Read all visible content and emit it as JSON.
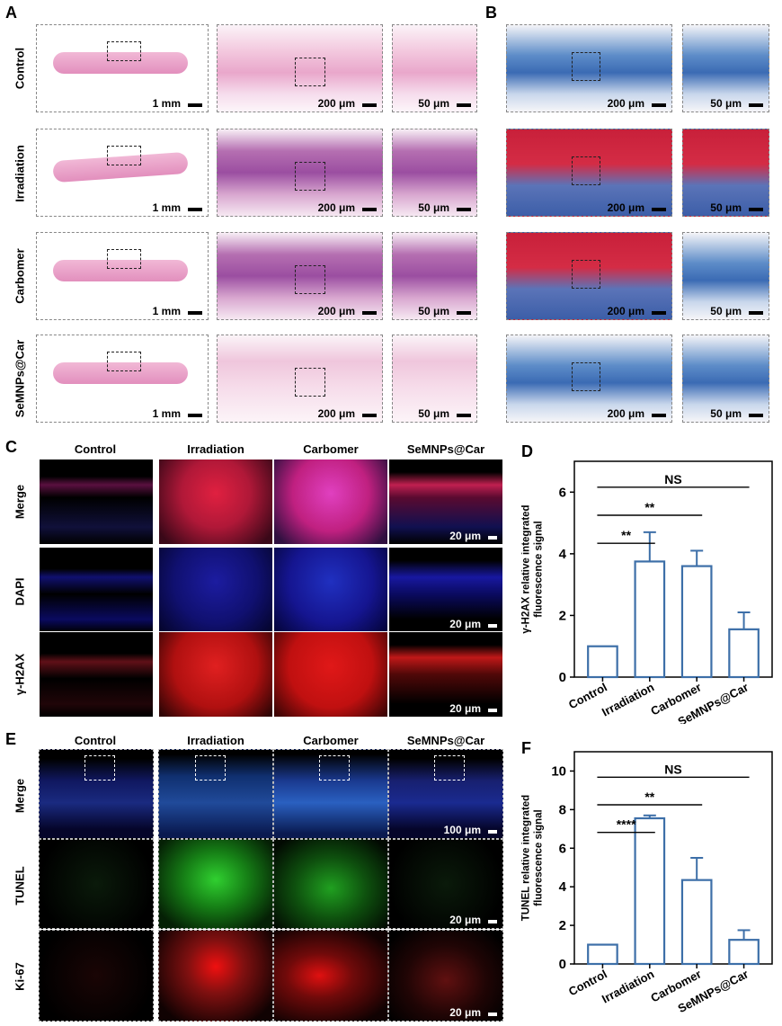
{
  "panels": {
    "a": "A",
    "b": "B",
    "c": "C",
    "d": "D",
    "e": "E",
    "f": "F"
  },
  "ab_rows": [
    "Control",
    "Irradiation",
    "Carbomer",
    "SeMNPs@Car"
  ],
  "scale": {
    "mm1": "1 mm",
    "um200": "200 μm",
    "um50": "50 μm",
    "um20": "20 μm",
    "um100": "100 μm"
  },
  "c_cols": [
    "Control",
    "Irradiation",
    "Carbomer",
    "SeMNPs@Car"
  ],
  "c_rows": [
    "Merge",
    "DAPI",
    "γ-H2AX"
  ],
  "e_cols": [
    "Control",
    "Irradiation",
    "Carbomer",
    "SeMNPs@Car"
  ],
  "e_rows": [
    "Merge",
    "TUNEL",
    "Ki-67"
  ],
  "colors": {
    "bar": "#3d6fa8",
    "merge_red": "#d8263a",
    "dapi_blue": "#2030d8",
    "tunel_green": "#2ecc2e"
  },
  "chart_data": [
    {
      "type": "bar",
      "categories": [
        "Control",
        "Irradiation",
        "Carbomer",
        "SeMNPs@Car"
      ],
      "values": [
        1.0,
        3.75,
        3.6,
        1.55
      ],
      "errors": [
        0.0,
        0.95,
        0.5,
        0.55
      ],
      "ylabel": "γ-H2AX relative integrated fluorescence signal",
      "ylim": [
        0,
        7
      ],
      "yticks": [
        "0",
        "2",
        "4",
        "6"
      ],
      "sig": [
        {
          "from": 0,
          "to": 1,
          "label": "**"
        },
        {
          "from": 0,
          "to": 2,
          "label": "**"
        },
        {
          "from": 0,
          "to": 3,
          "label": "NS"
        }
      ]
    },
    {
      "type": "bar",
      "categories": [
        "Control",
        "Irradiation",
        "Carbomer",
        "SeMNPs@Car"
      ],
      "values": [
        1.0,
        7.55,
        4.35,
        1.25
      ],
      "errors": [
        0.0,
        0.15,
        1.15,
        0.5
      ],
      "ylabel": "TUNEL relative integrated fluorescence signal",
      "ylim": [
        0,
        11
      ],
      "yticks": [
        "0",
        "2",
        "4",
        "6",
        "8",
        "10"
      ],
      "sig": [
        {
          "from": 0,
          "to": 1,
          "label": "****"
        },
        {
          "from": 0,
          "to": 2,
          "label": "**"
        },
        {
          "from": 0,
          "to": 3,
          "label": "NS"
        }
      ]
    }
  ]
}
